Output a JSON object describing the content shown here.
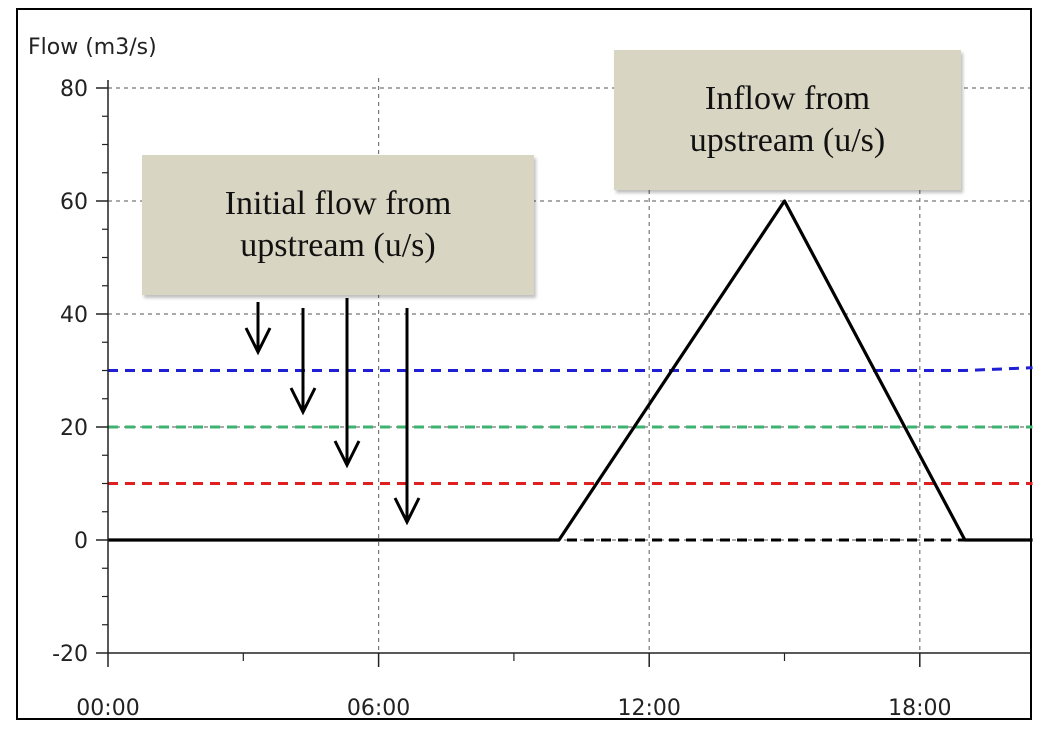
{
  "chart_data": {
    "type": "line",
    "ylabel": "Flow (m3/s)",
    "ylim": [
      -20,
      80
    ],
    "yticks": [
      "-20",
      "0",
      "20",
      "40",
      "60",
      "80"
    ],
    "xlim_hours": [
      0,
      20.5
    ],
    "xticks": [
      "00:00",
      "06:00",
      "12:00",
      "18:00"
    ],
    "grid": true,
    "series": [
      {
        "color": "#1f1fd6",
        "dashed": true,
        "x": [
          "00:00",
          "19:00",
          "20:30"
        ],
        "y": [
          30,
          30,
          30.5
        ]
      },
      {
        "color": "#3cb371",
        "dashed": true,
        "x": [
          "00:00",
          "20:30"
        ],
        "y": [
          20,
          20
        ]
      },
      {
        "color": "#e02020",
        "dashed": true,
        "x": [
          "00:00",
          "20:30"
        ],
        "y": [
          10,
          10
        ]
      },
      {
        "color": "#000000",
        "dashed": true,
        "x": [
          "00:00",
          "20:30"
        ],
        "y": [
          0,
          0
        ]
      },
      {
        "color": "#000000",
        "dashed": false,
        "x": [
          "00:00",
          "10:00",
          "15:00",
          "19:00",
          "20:30"
        ],
        "y": [
          0,
          0,
          60,
          0,
          0
        ]
      }
    ],
    "annotations": [
      {
        "id": "initial",
        "text": "Initial flow from upstream (u/s)"
      },
      {
        "id": "inflow",
        "text": "Inflow from upstream (u/s)"
      }
    ]
  },
  "callouts": {
    "initial": "Initial flow from upstream (u/s)",
    "inflow": "Inflow from upstream (u/s)"
  }
}
